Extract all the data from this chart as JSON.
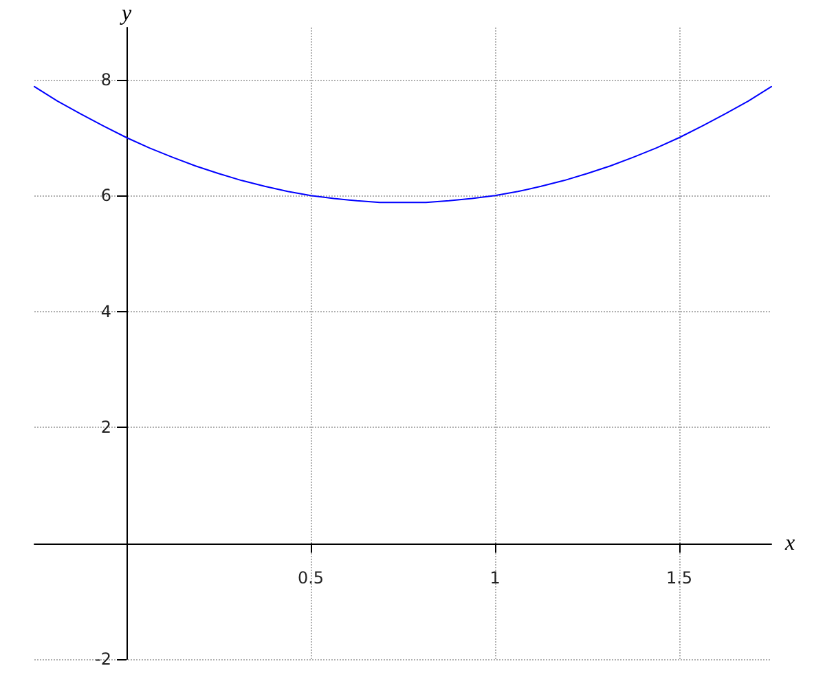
{
  "chart_data": {
    "type": "line",
    "xlabel": "x",
    "ylabel": "y",
    "x": [
      -0.25,
      -0.1875,
      -0.125,
      -0.0625,
      0,
      0.0625,
      0.125,
      0.1875,
      0.25,
      0.3125,
      0.375,
      0.4375,
      0.5,
      0.5625,
      0.625,
      0.6875,
      0.75,
      0.8125,
      0.875,
      0.9375,
      1,
      1.0625,
      1.125,
      1.1875,
      1.25,
      1.3125,
      1.375,
      1.4375,
      1.5,
      1.5625,
      1.625,
      1.6875,
      1.75
    ],
    "series": [
      {
        "color": "#0000ff",
        "values": [
          7.88,
          7.63,
          7.41,
          7.2,
          7,
          6.82,
          6.66,
          6.51,
          6.38,
          6.26,
          6.16,
          6.07,
          6,
          5.95,
          5.91,
          5.88,
          5.88,
          5.88,
          5.91,
          5.95,
          6,
          6.07,
          6.16,
          6.26,
          6.38,
          6.51,
          6.66,
          6.82,
          7,
          7.2,
          7.41,
          7.63,
          7.88
        ]
      }
    ],
    "xlim": [
      -0.25,
      1.75
    ],
    "ylim": [
      -2,
      8.9
    ],
    "xticks": [
      0.5,
      1,
      1.5
    ],
    "yticks": [
      -2,
      2,
      4,
      6,
      8
    ],
    "grid": true,
    "marker": "none",
    "line_style": "solid"
  }
}
